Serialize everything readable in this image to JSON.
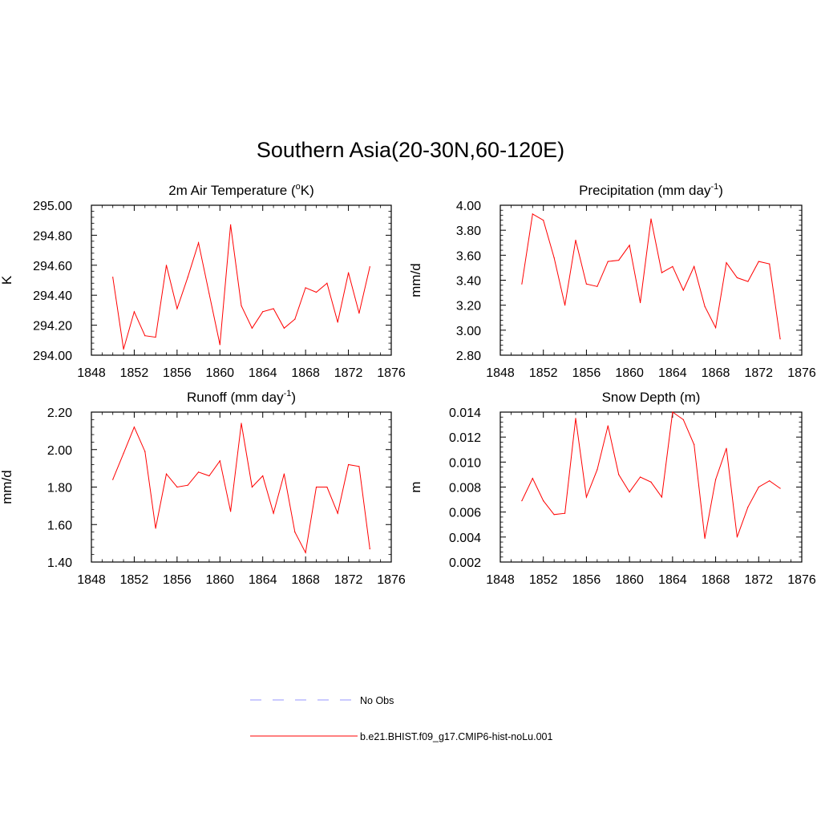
{
  "title": "Southern Asia(20-30N,60-120E)",
  "colors": {
    "series": "#ff0000",
    "obs": "#aaaaff"
  },
  "panels": [
    {
      "id": "air-temp",
      "title_main": "2m Air Temperature (",
      "title_sup": "o",
      "title_end": "K)",
      "ylabel": "K",
      "chart_data": {
        "type": "line",
        "x": [
          1850,
          1851,
          1852,
          1853,
          1854,
          1855,
          1856,
          1857,
          1858,
          1859,
          1860,
          1861,
          1862,
          1863,
          1864,
          1865,
          1866,
          1867,
          1868,
          1869,
          1870,
          1871,
          1872,
          1873,
          1874
        ],
        "values": [
          294.52,
          294.04,
          294.29,
          294.13,
          294.12,
          294.6,
          294.31,
          294.52,
          294.75,
          294.41,
          294.07,
          294.87,
          294.33,
          294.18,
          294.29,
          294.31,
          294.18,
          294.24,
          294.45,
          294.42,
          294.48,
          294.22,
          294.55,
          294.28,
          294.59
        ],
        "xlim": [
          1848,
          1876
        ],
        "xticks": [
          "1848",
          "1852",
          "1856",
          "1860",
          "1864",
          "1868",
          "1872",
          "1876"
        ],
        "ylim": [
          294.0,
          295.0
        ],
        "yticks": [
          "294.00",
          "294.20",
          "294.40",
          "294.60",
          "294.80",
          "295.00"
        ]
      }
    },
    {
      "id": "precip",
      "title_main": "Precipitation (mm day",
      "title_sup": "-1",
      "title_end": ")",
      "ylabel": "mm/d",
      "chart_data": {
        "type": "line",
        "x": [
          1850,
          1851,
          1852,
          1853,
          1854,
          1855,
          1856,
          1857,
          1858,
          1859,
          1860,
          1861,
          1862,
          1863,
          1864,
          1865,
          1866,
          1867,
          1868,
          1869,
          1870,
          1871,
          1872,
          1873,
          1874
        ],
        "values": [
          3.37,
          3.93,
          3.88,
          3.58,
          3.2,
          3.72,
          3.37,
          3.35,
          3.55,
          3.56,
          3.68,
          3.22,
          3.89,
          3.46,
          3.51,
          3.32,
          3.51,
          3.19,
          3.02,
          3.54,
          3.42,
          3.39,
          3.55,
          3.53,
          2.93
        ],
        "xlim": [
          1848,
          1876
        ],
        "xticks": [
          "1848",
          "1852",
          "1856",
          "1860",
          "1864",
          "1868",
          "1872",
          "1876"
        ],
        "ylim": [
          2.8,
          4.0
        ],
        "yticks": [
          "2.80",
          "3.00",
          "3.20",
          "3.40",
          "3.60",
          "3.80",
          "4.00"
        ]
      }
    },
    {
      "id": "runoff",
      "title_main": "Runoff (mm day",
      "title_sup": "-1",
      "title_end": ")",
      "ylabel": "mm/d",
      "chart_data": {
        "type": "line",
        "x": [
          1850,
          1851,
          1852,
          1853,
          1854,
          1855,
          1856,
          1857,
          1858,
          1859,
          1860,
          1861,
          1862,
          1863,
          1864,
          1865,
          1866,
          1867,
          1868,
          1869,
          1870,
          1871,
          1872,
          1873,
          1874
        ],
        "values": [
          1.84,
          1.98,
          2.12,
          1.99,
          1.58,
          1.87,
          1.8,
          1.81,
          1.88,
          1.86,
          1.94,
          1.67,
          2.14,
          1.8,
          1.86,
          1.66,
          1.87,
          1.56,
          1.45,
          1.8,
          1.8,
          1.66,
          1.92,
          1.91,
          1.47
        ],
        "xlim": [
          1848,
          1876
        ],
        "xticks": [
          "1848",
          "1852",
          "1856",
          "1860",
          "1864",
          "1868",
          "1872",
          "1876"
        ],
        "ylim": [
          1.4,
          2.2
        ],
        "yticks": [
          "1.40",
          "1.60",
          "1.80",
          "2.00",
          "2.20"
        ]
      }
    },
    {
      "id": "snow",
      "title_main": "Snow Depth (m)",
      "title_sup": "",
      "title_end": "",
      "ylabel": "m",
      "chart_data": {
        "type": "line",
        "x": [
          1850,
          1851,
          1852,
          1853,
          1854,
          1855,
          1856,
          1857,
          1858,
          1859,
          1860,
          1861,
          1862,
          1863,
          1864,
          1865,
          1866,
          1867,
          1868,
          1869,
          1870,
          1871,
          1872,
          1873,
          1874
        ],
        "values": [
          0.0069,
          0.0087,
          0.0069,
          0.0058,
          0.0059,
          0.0135,
          0.0072,
          0.0094,
          0.0129,
          0.009,
          0.0076,
          0.0088,
          0.0084,
          0.0072,
          0.014,
          0.0134,
          0.0114,
          0.0039,
          0.0086,
          0.0111,
          0.004,
          0.0064,
          0.008,
          0.0085,
          0.0079
        ],
        "xlim": [
          1848,
          1876
        ],
        "xticks": [
          "1848",
          "1852",
          "1856",
          "1860",
          "1864",
          "1868",
          "1872",
          "1876"
        ],
        "ylim": [
          0.002,
          0.014
        ],
        "yticks": [
          "0.002",
          "0.004",
          "0.006",
          "0.008",
          "0.010",
          "0.012",
          "0.014"
        ]
      }
    }
  ],
  "legend": {
    "obs_label": "No Obs",
    "model_label": "b.e21.BHIST.f09_g17.CMIP6-hist-noLu.001"
  }
}
